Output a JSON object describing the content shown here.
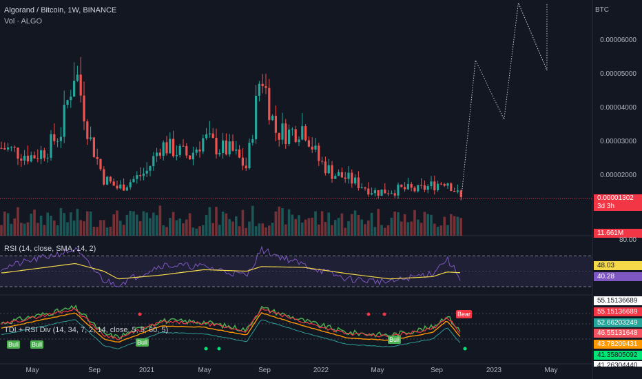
{
  "header": {
    "title": "Algorand / Bitcoin, 1W, BINANCE",
    "volume_label": "Vol · ALGO"
  },
  "price_axis": {
    "currency": "BTC",
    "ticks": [
      "0.00006000",
      "0.00005000",
      "0.00004000",
      "0.00003000",
      "0.00002000"
    ],
    "current_price": "0.00001302",
    "countdown": "3d 3h",
    "volume_value": "11.661M"
  },
  "rsi_panel": {
    "label": "RSI (14, close, SMA, 14, 2)",
    "upper_tick": "80.00",
    "rsi_value": "40.28",
    "sma_value": "48.03"
  },
  "tdi_panel": {
    "label": "TDI + RSI Div (14, 34, 7, 2, 14, close, 5, 5, 60, 5)",
    "values": [
      {
        "text": "55.15136689",
        "bg": "#ffffff",
        "fg": "#131722"
      },
      {
        "text": "55.15136689",
        "bg": "#f23645",
        "fg": "#ffffff"
      },
      {
        "text": "52.66203249",
        "bg": "#26a69a",
        "fg": "#ffffff"
      },
      {
        "text": "46.55131648",
        "bg": "#f7525f",
        "fg": "#ffffff"
      },
      {
        "text": "43.78209431",
        "bg": "#ff9800",
        "fg": "#ffffff"
      },
      {
        "text": "41.35805092",
        "bg": "#00e676",
        "fg": "#131722"
      },
      {
        "text": "41.26304440",
        "bg": "#ffffff",
        "fg": "#131722"
      }
    ],
    "signals": [
      {
        "label": "Bull",
        "type": "bull"
      },
      {
        "label": "Bull",
        "type": "bull"
      },
      {
        "label": "Bull",
        "type": "bull"
      },
      {
        "label": "Bull",
        "type": "bull"
      },
      {
        "label": "Bear",
        "type": "bear"
      }
    ]
  },
  "time_axis": [
    "May",
    "Sep",
    "2021",
    "May",
    "Sep",
    "2022",
    "May",
    "Sep",
    "2023",
    "May"
  ],
  "colors": {
    "up": "#26a69a",
    "down": "#ef5350",
    "rsi_line": "#7e57c2",
    "rsi_sma": "#f5d94a",
    "background": "#131722"
  },
  "chart_data": {
    "type": "candlestick",
    "symbol": "ALGO/BTC",
    "interval": "1W",
    "exchange": "BINANCE",
    "price_ylim": [
      9.5e-06,
      7e-05
    ],
    "price_waypoints": [
      {
        "time": "2020-03",
        "close": 2.8e-05
      },
      {
        "time": "2020-05",
        "close": 2.55e-05
      },
      {
        "time": "2020-06",
        "close": 2.75e-05
      },
      {
        "time": "2020-07",
        "close": 3.3e-05
      },
      {
        "time": "2020-08",
        "close": 5.2e-05
      },
      {
        "time": "2020-09",
        "close": 3.1e-05
      },
      {
        "time": "2020-10",
        "close": 1.9e-05
      },
      {
        "time": "2020-11",
        "close": 1.6e-05
      },
      {
        "time": "2021-01",
        "close": 2.1e-05
      },
      {
        "time": "2021-02",
        "close": 2.9e-05
      },
      {
        "time": "2021-04",
        "close": 2.55e-05
      },
      {
        "time": "2021-05",
        "close": 3.1e-05
      },
      {
        "time": "2021-06",
        "close": 2.8e-05
      },
      {
        "time": "2021-07",
        "close": 2.7e-05
      },
      {
        "time": "2021-08",
        "close": 2.2e-05
      },
      {
        "time": "2021-09",
        "close": 5.1e-05
      },
      {
        "time": "2021-10",
        "close": 3.3e-05
      },
      {
        "time": "2021-11",
        "close": 3.25e-05
      },
      {
        "time": "2021-12",
        "close": 3.45e-05
      },
      {
        "time": "2022-01",
        "close": 2.45e-05
      },
      {
        "time": "2022-02",
        "close": 2.05e-05
      },
      {
        "time": "2022-03",
        "close": 1.9e-05
      },
      {
        "time": "2022-05",
        "close": 1.5e-05
      },
      {
        "time": "2022-07",
        "close": 1.58e-05
      },
      {
        "time": "2022-08",
        "close": 1.55e-05
      },
      {
        "time": "2022-09",
        "close": 1.7e-05
      },
      {
        "time": "2022-10",
        "close": 1.85e-05
      },
      {
        "time": "2022-11",
        "close": 1.3e-05
      }
    ],
    "projection": [
      {
        "time": "2022-11",
        "price": 1.3e-05
      },
      {
        "time": "2022-12",
        "price": 5.4e-05
      },
      {
        "time": "2023-02",
        "price": 3.65e-05
      },
      {
        "time": "2023-03",
        "price": 7.1e-05
      },
      {
        "time": "2023-05",
        "price": 5.1e-05
      },
      {
        "time": "2023-05",
        "price": 7.1e-05
      }
    ],
    "rsi_ylim": [
      20,
      82
    ],
    "rsi_waypoints": [
      {
        "time": "2020-03",
        "rsi": 55,
        "sma": 48
      },
      {
        "time": "2020-08",
        "rsi": 78,
        "sma": 60
      },
      {
        "time": "2020-10",
        "rsi": 38,
        "sma": 50
      },
      {
        "time": "2020-11",
        "rsi": 33,
        "sma": 40
      },
      {
        "time": "2021-02",
        "rsi": 58,
        "sma": 45
      },
      {
        "time": "2021-05",
        "rsi": 56,
        "sma": 52
      },
      {
        "time": "2021-08",
        "rsi": 44,
        "sma": 50
      },
      {
        "time": "2021-09",
        "rsi": 78,
        "sma": 56
      },
      {
        "time": "2021-12",
        "rsi": 58,
        "sma": 55
      },
      {
        "time": "2022-03",
        "rsi": 40,
        "sma": 47
      },
      {
        "time": "2022-06",
        "rsi": 36,
        "sma": 40
      },
      {
        "time": "2022-09",
        "rsi": 48,
        "sma": 43
      },
      {
        "time": "2022-10",
        "rsi": 66,
        "sma": 49
      },
      {
        "time": "2022-11",
        "rsi": 40,
        "sma": 48
      }
    ]
  }
}
